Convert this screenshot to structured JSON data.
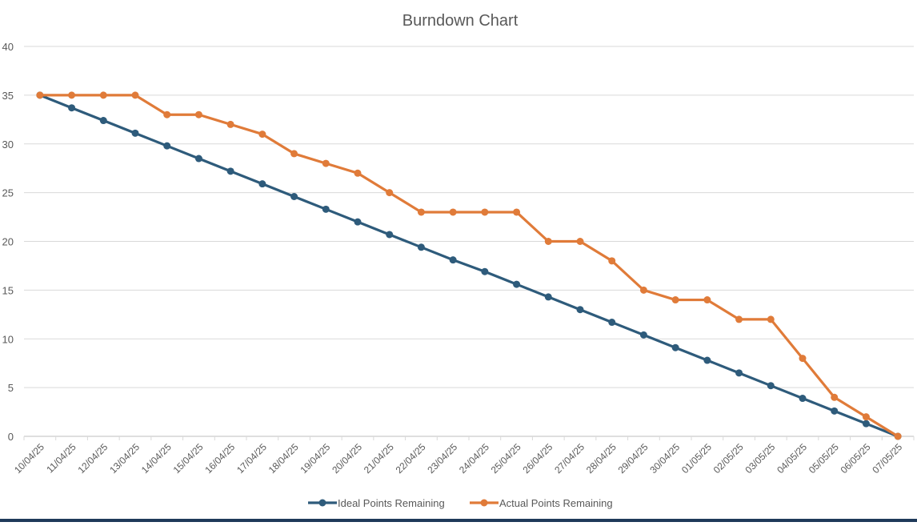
{
  "chart_data": {
    "type": "line",
    "title": "Burndown Chart",
    "xlabel": "",
    "ylabel": "",
    "ylim": [
      0,
      40
    ],
    "yticks": [
      0,
      5,
      10,
      15,
      20,
      25,
      30,
      35,
      40
    ],
    "grid": true,
    "legend_position": "bottom",
    "categories": [
      "10/04/25",
      "11/04/25",
      "12/04/25",
      "13/04/25",
      "14/04/25",
      "15/04/25",
      "16/04/25",
      "17/04/25",
      "18/04/25",
      "19/04/25",
      "20/04/25",
      "21/04/25",
      "22/04/25",
      "23/04/25",
      "24/04/25",
      "25/04/25",
      "26/04/25",
      "27/04/25",
      "28/04/25",
      "29/04/25",
      "30/04/25",
      "01/05/25",
      "02/05/25",
      "03/05/25",
      "04/05/25",
      "05/05/25",
      "06/05/25",
      "07/05/25"
    ],
    "series": [
      {
        "name": "Ideal Points Remaining",
        "color": "#2e5b7b",
        "values": [
          35,
          33.7,
          32.4,
          31.1,
          29.8,
          28.5,
          27.2,
          25.9,
          24.6,
          23.3,
          22.0,
          20.7,
          19.4,
          18.1,
          16.9,
          15.6,
          14.3,
          13.0,
          11.7,
          10.4,
          9.1,
          7.8,
          6.5,
          5.2,
          3.9,
          2.6,
          1.3,
          0
        ]
      },
      {
        "name": "Actual Points Remaining",
        "color": "#e07b39",
        "values": [
          35,
          35,
          35,
          35,
          33,
          33,
          32,
          31,
          29,
          28,
          27,
          25,
          23,
          23,
          23,
          23,
          20,
          20,
          18,
          15,
          14,
          14,
          12,
          12,
          8,
          4,
          2,
          0
        ]
      }
    ]
  }
}
